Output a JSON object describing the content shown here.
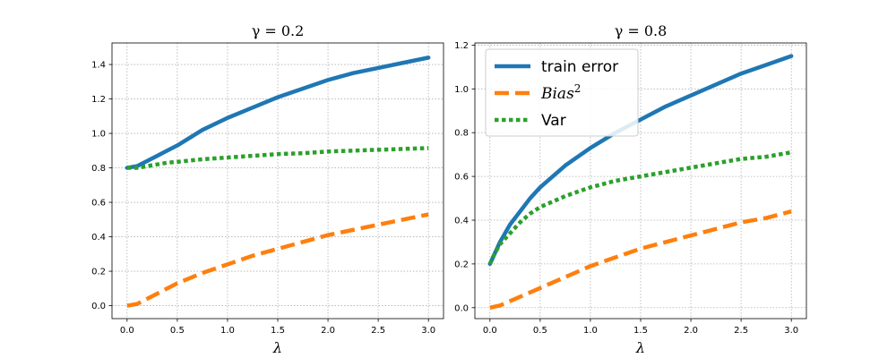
{
  "chart_data": [
    {
      "type": "line",
      "title": "γ = 0.2",
      "xlabel": "λ",
      "ylabel": "",
      "xlim": [
        -0.15,
        3.15
      ],
      "ylim": [
        -0.075,
        1.525
      ],
      "xticks": [
        0.0,
        0.5,
        1.0,
        1.5,
        2.0,
        2.5,
        3.0
      ],
      "xtick_labels": [
        "0.0",
        "0.5",
        "1.0",
        "1.5",
        "2.0",
        "2.5",
        "3.0"
      ],
      "yticks": [
        0.0,
        0.2,
        0.4,
        0.6,
        0.8,
        1.0,
        1.2,
        1.4
      ],
      "ytick_labels": [
        "0.0",
        "0.2",
        "0.4",
        "0.6",
        "0.8",
        "1.0",
        "1.2",
        "1.4"
      ],
      "grid": true,
      "legend": false,
      "x": [
        0.0,
        0.1,
        0.2,
        0.3,
        0.4,
        0.5,
        0.75,
        1.0,
        1.25,
        1.5,
        1.75,
        2.0,
        2.25,
        2.5,
        2.75,
        3.0
      ],
      "series": [
        {
          "name": "train error",
          "style": "solid",
          "color": "#1f77b4",
          "values": [
            0.8,
            0.81,
            0.84,
            0.87,
            0.9,
            0.93,
            1.02,
            1.09,
            1.15,
            1.21,
            1.26,
            1.31,
            1.35,
            1.38,
            1.41,
            1.44
          ]
        },
        {
          "name": "Bias²",
          "style": "dashed",
          "color": "#ff7f0e",
          "values": [
            0.0,
            0.01,
            0.04,
            0.07,
            0.1,
            0.13,
            0.19,
            0.24,
            0.29,
            0.33,
            0.37,
            0.41,
            0.44,
            0.47,
            0.5,
            0.53
          ]
        },
        {
          "name": "Var",
          "style": "dotted",
          "color": "#2ca02c",
          "values": [
            0.8,
            0.8,
            0.81,
            0.82,
            0.83,
            0.835,
            0.85,
            0.86,
            0.87,
            0.88,
            0.885,
            0.895,
            0.9,
            0.905,
            0.91,
            0.915
          ]
        }
      ]
    },
    {
      "type": "line",
      "title": "γ = 0.8",
      "xlabel": "λ",
      "ylabel": "",
      "xlim": [
        -0.15,
        3.15
      ],
      "ylim": [
        -0.05,
        1.21
      ],
      "xticks": [
        0.0,
        0.5,
        1.0,
        1.5,
        2.0,
        2.5,
        3.0
      ],
      "xtick_labels": [
        "0.0",
        "0.5",
        "1.0",
        "1.5",
        "2.0",
        "2.5",
        "3.0"
      ],
      "yticks": [
        0.0,
        0.2,
        0.4,
        0.6,
        0.8,
        1.0,
        1.2
      ],
      "ytick_labels": [
        "0.0",
        "0.2",
        "0.4",
        "0.6",
        "0.8",
        "1.0",
        "1.2"
      ],
      "grid": true,
      "legend": true,
      "legend_position": "top-left",
      "x": [
        0.0,
        0.05,
        0.1,
        0.2,
        0.3,
        0.4,
        0.5,
        0.75,
        1.0,
        1.25,
        1.5,
        1.75,
        2.0,
        2.25,
        2.5,
        2.75,
        3.0
      ],
      "series": [
        {
          "name": "train error",
          "style": "solid",
          "color": "#1f77b4",
          "values": [
            0.2,
            0.25,
            0.3,
            0.38,
            0.44,
            0.5,
            0.55,
            0.65,
            0.73,
            0.8,
            0.86,
            0.92,
            0.97,
            1.02,
            1.07,
            1.11,
            1.15
          ]
        },
        {
          "name": "Bias²",
          "style": "dashed",
          "color": "#ff7f0e",
          "values": [
            0.0,
            0.005,
            0.01,
            0.03,
            0.05,
            0.07,
            0.09,
            0.14,
            0.19,
            0.23,
            0.27,
            0.3,
            0.33,
            0.36,
            0.39,
            0.41,
            0.44
          ]
        },
        {
          "name": "Var",
          "style": "dotted",
          "color": "#2ca02c",
          "values": [
            0.2,
            0.25,
            0.29,
            0.34,
            0.39,
            0.43,
            0.46,
            0.51,
            0.55,
            0.58,
            0.6,
            0.62,
            0.64,
            0.66,
            0.68,
            0.69,
            0.71
          ]
        }
      ]
    }
  ],
  "legend": {
    "items": [
      {
        "label": "train error",
        "sup": ""
      },
      {
        "label": "Bias",
        "sup": "2"
      },
      {
        "label": "Var",
        "sup": ""
      }
    ]
  }
}
